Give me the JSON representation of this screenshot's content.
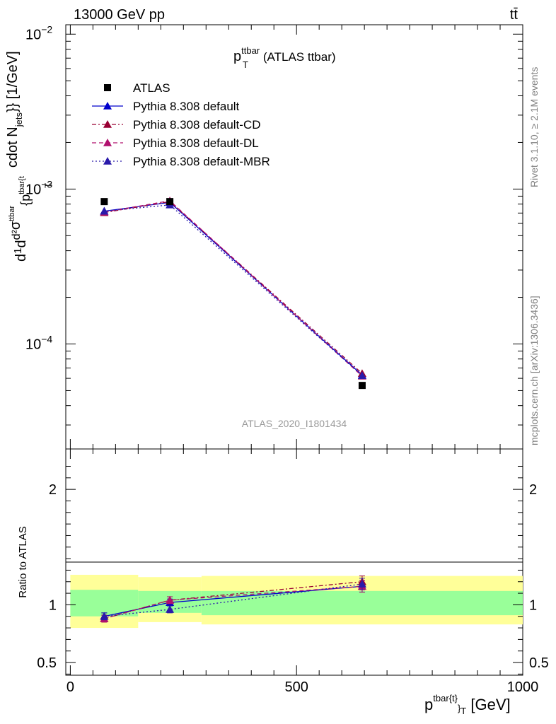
{
  "header": {
    "energy_label": "13000 GeV pp",
    "process_label": "tt̄"
  },
  "side_labels": {
    "rivet": "Rivet 3.1.10, ≥ 2.1M events",
    "mcplots": "mcplots.cern.ch [arXiv:1306.3436]"
  },
  "plot_title": {
    "main": "p",
    "sub": "T",
    "sup": "ttbar",
    "rest": " (ATLAS ttbar)"
  },
  "analysis_id": "ATLAS_2020_I1801434",
  "ylabel_main": "d¹/σ d²σᵗᵗᵇᵃʳ / d²{pᵀᵗᵇᵃʳ{t} cdot N_jets}} [1/GeV]",
  "ylabel_main_parts": {
    "cdot": "cdot N",
    "jets": "jets",
    "unit": "}} [1/GeV]",
    "frac_top": "d",
    "frac_bot": "d",
    "sigma": "σ",
    "tbar": "tbar{t",
    "ttbar": "ttbar",
    "pt": "{p",
    "T": "T",
    "d2": "d²",
    "one": "1"
  },
  "ratio_ylabel": "Ratio to ATLAS",
  "xlabel": {
    "main": "p",
    "sup": "tbar{t}",
    "sub": "}",
    "subT": "T",
    "unit": " [GeV]"
  },
  "chart_data": {
    "type": "line",
    "x_label": "p_T^{tbar{t}} [GeV]",
    "y_label": "d1/σ dσ / d p_T [1/GeV]",
    "ratio_label": "Ratio to ATLAS",
    "xlim": [
      -10,
      1000
    ],
    "ylim_main": [
      2.1e-05,
      0.0115
    ],
    "ylim_ratio": [
      0.39,
      2.35
    ],
    "y_scale": "log",
    "x_ticks": [
      0,
      500,
      1000
    ],
    "y_ticks_main": [
      {
        "v": 0.01,
        "base": "10",
        "exp": "−2"
      },
      {
        "v": 0.001,
        "base": "10",
        "exp": "−3"
      },
      {
        "v": 0.0001,
        "base": "10",
        "exp": "−4"
      }
    ],
    "y_ticks_ratio": [
      {
        "v": 0.5,
        "label": "0.5"
      },
      {
        "v": 1,
        "label": "1"
      },
      {
        "v": 2,
        "label": "2"
      }
    ],
    "bins": [
      [
        0,
        150
      ],
      [
        150,
        290
      ],
      [
        290,
        1000
      ]
    ],
    "x": [
      75,
      220,
      645
    ],
    "reference": {
      "name": "ATLAS",
      "values": [
        0.00083,
        0.00083,
        5.4e-05
      ],
      "band_inner": [
        [
          0.9,
          1.13
        ],
        [
          0.93,
          1.12
        ],
        [
          0.91,
          1.12
        ]
      ],
      "band_outer": [
        [
          0.8,
          1.26
        ],
        [
          0.85,
          1.24
        ],
        [
          0.83,
          1.25
        ]
      ]
    },
    "series": [
      {
        "name": "Pythia 8.308 default",
        "color": "#0000cc",
        "dash": "",
        "marker": "triangle",
        "values": [
          0.00072,
          0.00082,
          6.3e-05
        ],
        "ratio": [
          0.9,
          1.02,
          1.16
        ],
        "ratio_err": [
          0.03,
          0.03,
          0.05
        ]
      },
      {
        "name": "Pythia 8.308 default-CD",
        "color": "#990033",
        "dash": "6,3,2,3",
        "marker": "triangle",
        "values": [
          0.000705,
          0.00083,
          6.45e-05
        ],
        "ratio": [
          0.88,
          1.04,
          1.2
        ],
        "ratio_err": [
          0.03,
          0.03,
          0.05
        ]
      },
      {
        "name": "Pythia 8.308 default-DL",
        "color": "#b0106e",
        "dash": "6,4",
        "marker": "triangle",
        "values": [
          0.00071,
          0.00084,
          6.2e-05
        ],
        "ratio": [
          0.88,
          1.04,
          1.16
        ],
        "ratio_err": [
          0.03,
          0.03,
          0.05
        ]
      },
      {
        "name": "Pythia 8.308 default-MBR",
        "color": "#2a1aaa",
        "dash": "2,3",
        "marker": "triangle",
        "values": [
          0.00072,
          0.00079,
          6.25e-05
        ],
        "ratio": [
          0.9,
          0.96,
          1.18
        ],
        "ratio_err": [
          0.03,
          0.03,
          0.05
        ]
      }
    ],
    "legend_placement": "top-left",
    "grid": false
  }
}
